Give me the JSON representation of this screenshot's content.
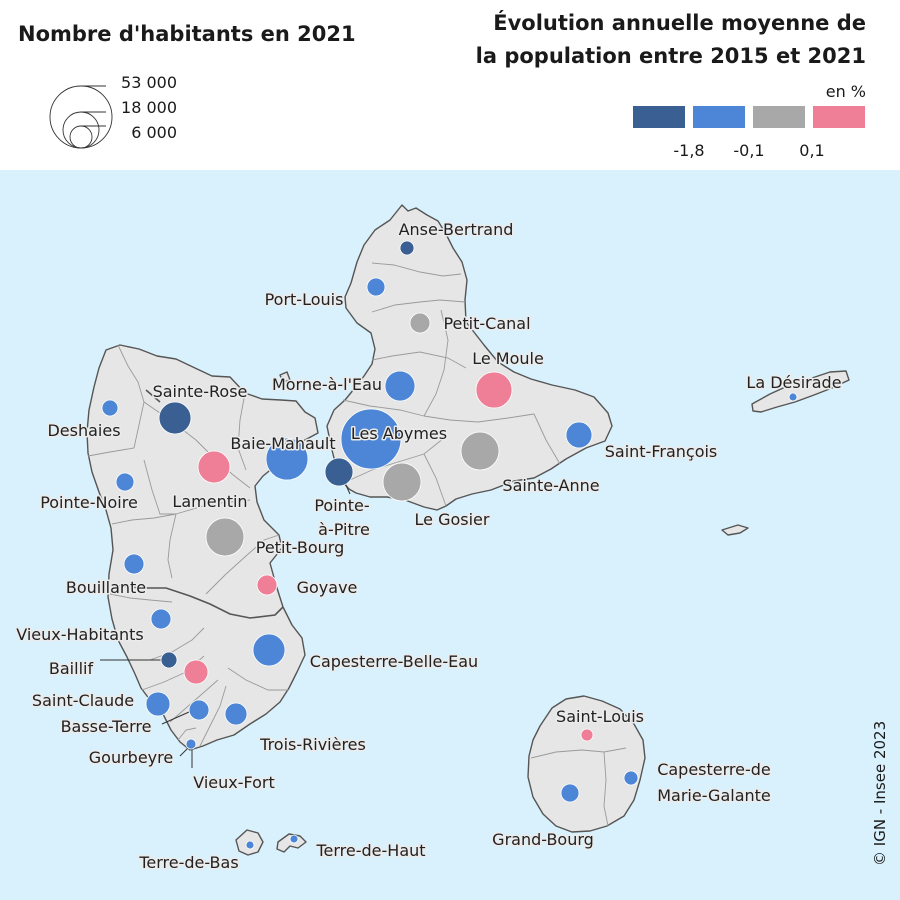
{
  "titles": {
    "population_title": "Nombre d'habitants en 2021",
    "evolution_title_line1": "Évolution annuelle moyenne de",
    "evolution_title_line2": "la population entre 2015 et 2021"
  },
  "size_legend": {
    "values": [
      "53 000",
      "18 000",
      "6 000"
    ]
  },
  "color_legend": {
    "unit": "en %",
    "classes": [
      {
        "color": "#3a6093"
      },
      {
        "color": "#4d86d6"
      },
      {
        "color": "#a8a8a8"
      },
      {
        "color": "#ee7f97"
      }
    ],
    "breaks": [
      "-1,8",
      "-0,1",
      "0,1"
    ]
  },
  "colors": {
    "sea": "#d9f1fc",
    "land": "#e6e6e6",
    "dark_blue": "#3a6093",
    "blue": "#4d86d6",
    "grey": "#a8a8a8",
    "pink": "#ee7f97"
  },
  "communes": [
    {
      "name": "Anse-Bertrand",
      "class": "dark_blue"
    },
    {
      "name": "Port-Louis",
      "class": "blue"
    },
    {
      "name": "Petit-Canal",
      "class": "grey"
    },
    {
      "name": "Le Moule",
      "class": "pink"
    },
    {
      "name": "Morne-à-l'Eau",
      "class": "blue"
    },
    {
      "name": "La Désirade",
      "class": "blue"
    },
    {
      "name": "Sainte-Rose",
      "class": "dark_blue"
    },
    {
      "name": "Deshaies",
      "class": "blue"
    },
    {
      "name": "Les Abymes",
      "class": "blue"
    },
    {
      "name": "Baie-Mahault",
      "class": "blue"
    },
    {
      "name": "Saint-François",
      "class": "blue"
    },
    {
      "name": "Pointe-à-Pitre",
      "class": "dark_blue"
    },
    {
      "name": "Sainte-Anne",
      "class": "grey"
    },
    {
      "name": "Le Gosier",
      "class": "grey"
    },
    {
      "name": "Lamentin",
      "class": "pink"
    },
    {
      "name": "Pointe-Noire",
      "class": "blue"
    },
    {
      "name": "Petit-Bourg",
      "class": "grey"
    },
    {
      "name": "Bouillante",
      "class": "blue"
    },
    {
      "name": "Goyave",
      "class": "pink"
    },
    {
      "name": "Vieux-Habitants",
      "class": "blue"
    },
    {
      "name": "Capesterre-Belle-Eau",
      "class": "blue"
    },
    {
      "name": "Baillif",
      "class": "dark_blue"
    },
    {
      "name": "Saint-Claude",
      "class": "pink"
    },
    {
      "name": "Basse-Terre",
      "class": "blue"
    },
    {
      "name": "Gourbeyre",
      "class": "blue"
    },
    {
      "name": "Trois-Rivières",
      "class": "blue"
    },
    {
      "name": "Vieux-Fort",
      "class": "blue"
    },
    {
      "name": "Saint-Louis",
      "class": "pink"
    },
    {
      "name": "Capesterre-de-Marie-Galante",
      "class": "blue"
    },
    {
      "name": "Grand-Bourg",
      "class": "blue"
    },
    {
      "name": "Terre-de-Bas",
      "class": "blue"
    },
    {
      "name": "Terre-de-Haut",
      "class": "blue"
    }
  ],
  "labels": {
    "anse_bertrand": "Anse-Bertrand",
    "port_louis": "Port-Louis",
    "petit_canal": "Petit-Canal",
    "le_moule": "Le Moule",
    "morne_a_l_eau": "Morne-à-l'Eau",
    "la_desirade": "La Désirade",
    "sainte_rose": "Sainte-Rose",
    "deshaies": "Deshaies",
    "les_abymes": "Les Abymes",
    "baie_mahault": "Baie-Mahault",
    "saint_francois": "Saint-François",
    "pointe_a_pitre_1": "Pointe-",
    "pointe_a_pitre_2": "à-Pitre",
    "sainte_anne": "Sainte-Anne",
    "le_gosier": "Le Gosier",
    "lamentin": "Lamentin",
    "pointe_noire": "Pointe-Noire",
    "petit_bourg": "Petit-Bourg",
    "bouillante": "Bouillante",
    "goyave": "Goyave",
    "vieux_habitants": "Vieux-Habitants",
    "capesterre_belle_eau": "Capesterre-Belle-Eau",
    "baillif": "Baillif",
    "saint_claude": "Saint-Claude",
    "basse_terre": "Basse-Terre",
    "gourbeyre": "Gourbeyre",
    "trois_rivieres": "Trois-Rivières",
    "vieux_fort": "Vieux-Fort",
    "saint_louis": "Saint-Louis",
    "capesterre_mg_1": "Capesterre-de",
    "capesterre_mg_2": "Marie-Galante",
    "grand_bourg": "Grand-Bourg",
    "terre_de_bas": "Terre-de-Bas",
    "terre_de_haut": "Terre-de-Haut"
  },
  "credit": "© IGN - Insee 2023"
}
